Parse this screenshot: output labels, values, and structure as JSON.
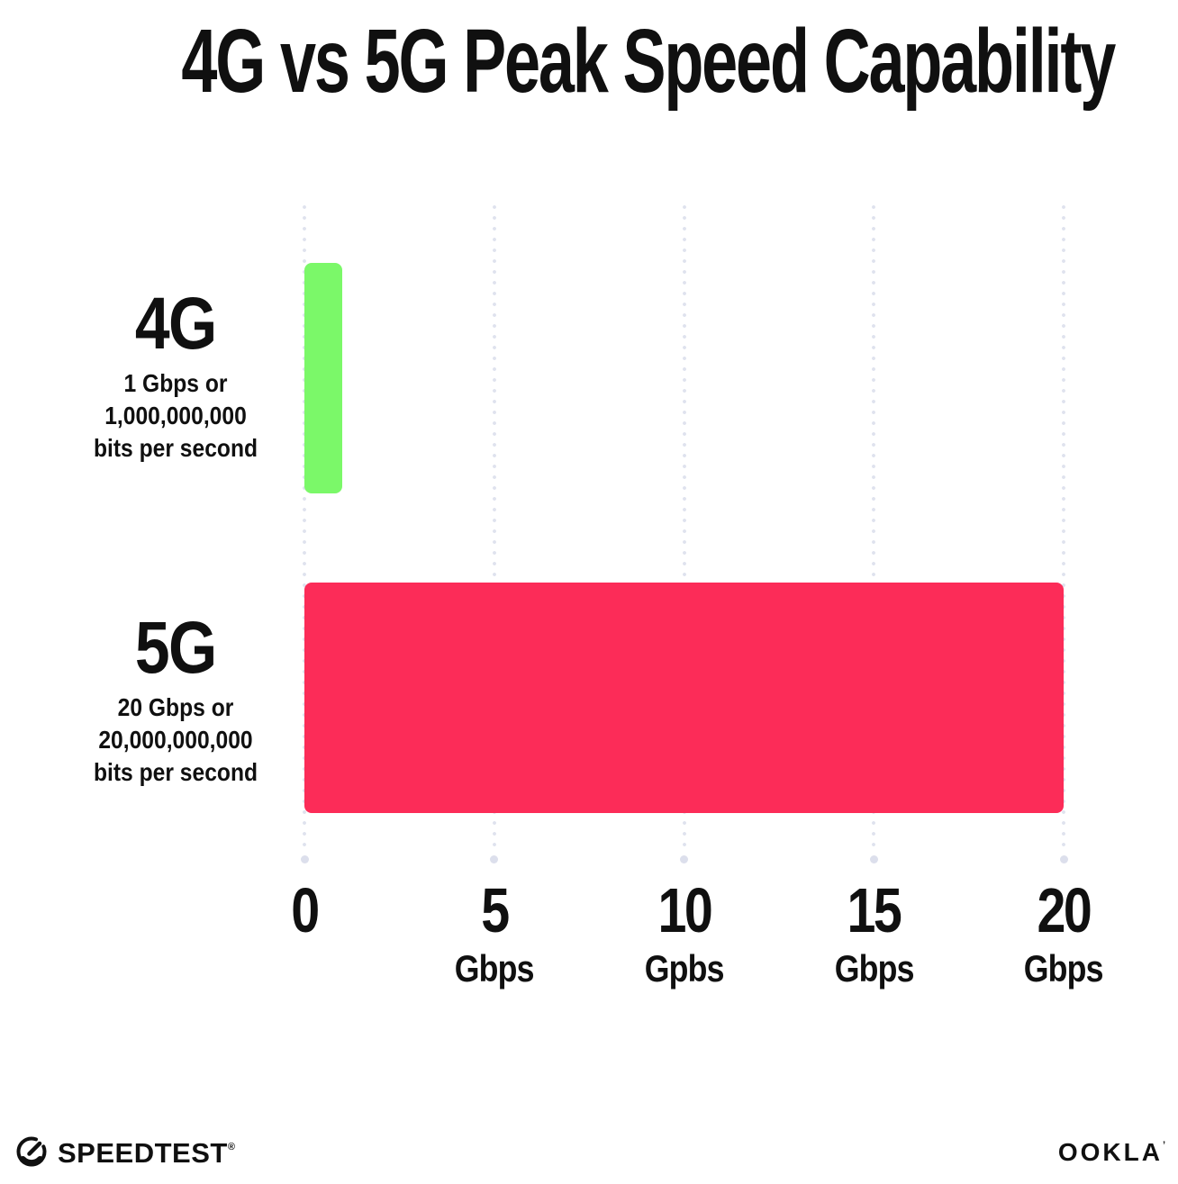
{
  "title": "4G vs 5G Peak Speed Capability",
  "colors": {
    "bar_4g_green": "#7BF869",
    "bar_5g_pink": "#FC2C58",
    "grid_dot": "#DFE2EE",
    "text": "#101010"
  },
  "rows": [
    {
      "label": "4G",
      "desc": [
        "1 Gbps or",
        "1,000,000,000",
        "bits per second"
      ],
      "value": 1,
      "color": "#7BF869"
    },
    {
      "label": "5G",
      "desc": [
        "20 Gbps or",
        "20,000,000,000",
        "bits per second"
      ],
      "value": 20,
      "color": "#FC2C58"
    }
  ],
  "axis": {
    "min": 0,
    "max": 20,
    "ticks": [
      {
        "label": "0",
        "unit": ""
      },
      {
        "label": "5",
        "unit": "Gbps"
      },
      {
        "label": "10",
        "unit": "Gpbs"
      },
      {
        "label": "15",
        "unit": "Gbps"
      },
      {
        "label": "20",
        "unit": "Gbps"
      }
    ]
  },
  "chart_data": {
    "type": "bar",
    "orientation": "horizontal",
    "title": "4G vs 5G Peak Speed Capability",
    "categories": [
      "4G",
      "5G"
    ],
    "values": [
      1,
      20
    ],
    "bar_colors": [
      "#7BF869",
      "#FC2C58"
    ],
    "category_annotations": [
      "1 Gbps or 1,000,000,000 bits per second",
      "20 Gbps or 20,000,000,000 bits per second"
    ],
    "xlabel": "Gbps",
    "xlim": [
      0,
      20
    ],
    "xticks": [
      0,
      5,
      10,
      15,
      20
    ],
    "xtick_units": [
      "",
      "Gbps",
      "Gpbs",
      "Gbps",
      "Gbps"
    ],
    "grid": "vertical dotted",
    "legend": "none"
  },
  "footer": {
    "speedtest_label": "SPEEDTEST",
    "speedtest_mark": "®",
    "ookla_label": "OOKLA",
    "ookla_mark": "’"
  }
}
